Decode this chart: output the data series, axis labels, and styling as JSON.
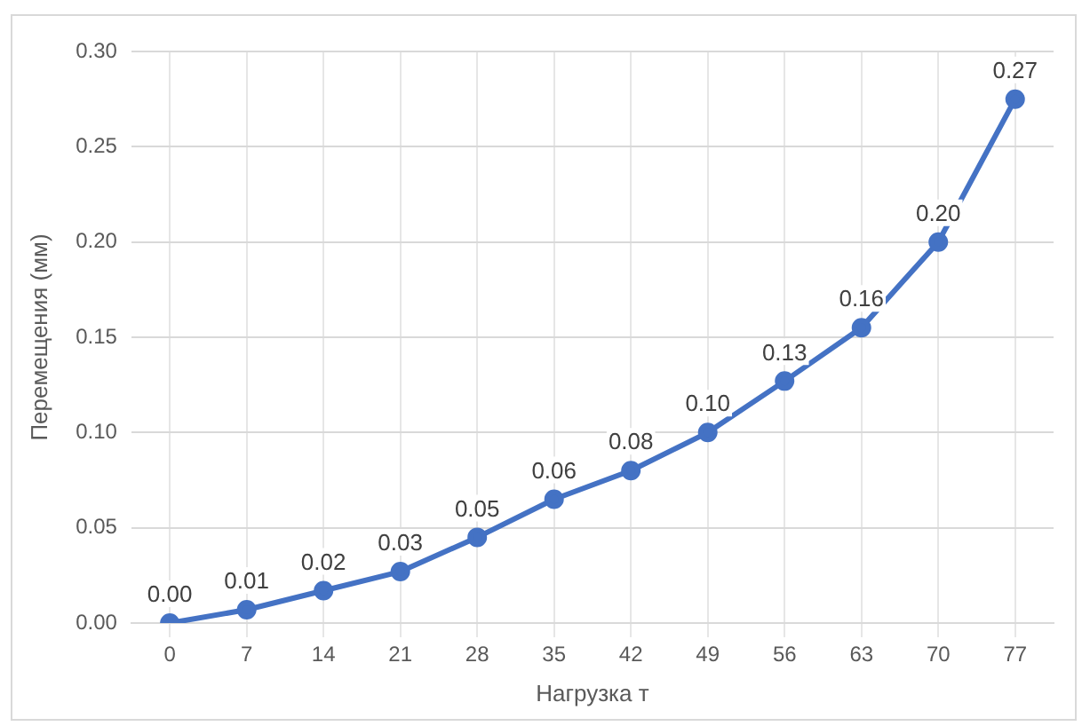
{
  "chart_data": {
    "type": "line",
    "xlabel": "Нагрузка т",
    "ylabel": "Перемещения (мм)",
    "categories": [
      "0",
      "7",
      "14",
      "21",
      "28",
      "35",
      "42",
      "49",
      "56",
      "63",
      "70",
      "77"
    ],
    "series": [
      {
        "color": "#4472c4",
        "values": [
          0,
          0.007,
          0.017,
          0.027,
          0.045,
          0.065,
          0.08,
          0.1,
          0.127,
          0.155,
          0.2,
          0.275
        ],
        "value_labels": [
          "0.00",
          "0.01",
          "0.02",
          "0.03",
          "0.05",
          "0.06",
          "0.08",
          "0.10",
          "0.13",
          "0.16",
          "0.20",
          "0.27"
        ]
      }
    ],
    "ylim": [
      0,
      0.3
    ],
    "yticks": [
      "0.00",
      "0.05",
      "0.10",
      "0.15",
      "0.20",
      "0.25",
      "0.30"
    ],
    "grid": true,
    "legend": false,
    "marker": "circle",
    "line_style": "solid"
  }
}
